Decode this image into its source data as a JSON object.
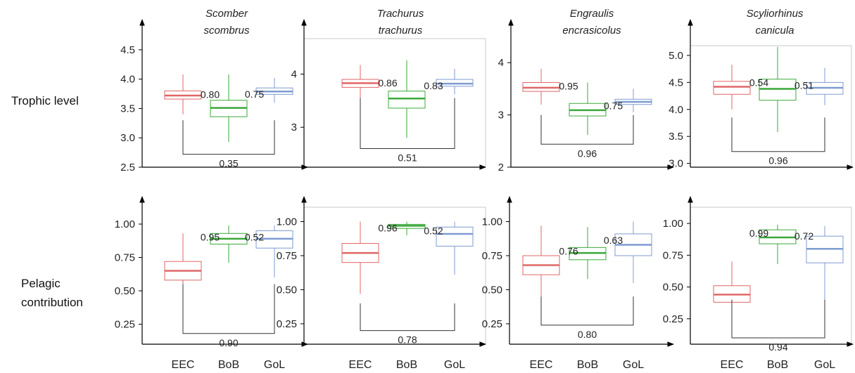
{
  "row_labels": {
    "trophic": "Trophic level",
    "pelagic_line1": "Pelagic",
    "pelagic_line2": "contribution"
  },
  "colors": {
    "EEC": "#e06666",
    "BoB": "#3aa83a",
    "GoL": "#7f9bd0",
    "axis": "#000000",
    "text": "#222222"
  },
  "chart_data": [
    {
      "type": "box",
      "id": "tl-scomber",
      "row": "trophic",
      "title": [
        "Scomber",
        "scombrus"
      ],
      "categories": [
        "EEC",
        "BoB",
        "GoL"
      ],
      "ticks": [
        2.5,
        3.0,
        3.5,
        4.0,
        4.5
      ],
      "tick_labels": [
        "2.5",
        "3.0",
        "3.5",
        "4.0",
        "4.5"
      ],
      "ylim": [
        2.5,
        4.75
      ],
      "boxes": [
        {
          "cat": "EEC",
          "min": 3.4,
          "q1": 3.66,
          "median": 3.72,
          "q3": 3.8,
          "max": 4.08
        },
        {
          "cat": "BoB",
          "min": 2.93,
          "q1": 3.36,
          "median": 3.51,
          "q3": 3.64,
          "max": 4.08
        },
        {
          "cat": "GoL",
          "min": 3.6,
          "q1": 3.74,
          "median": 3.79,
          "q3": 3.85,
          "max": 4.02
        }
      ],
      "pair_labels": [
        "0.80",
        "0.75"
      ],
      "bracket_label": "0.35",
      "bracket_y": 3.3,
      "bracket_bottom": 2.72
    },
    {
      "type": "box",
      "id": "tl-trachurus",
      "row": "trophic",
      "title": [
        "Trachurus",
        "trachurus"
      ],
      "categories": [
        "EEC",
        "BoB",
        "GoL"
      ],
      "ticks": [
        3,
        4
      ],
      "tick_labels": [
        "3",
        "4"
      ],
      "ylim": [
        2.25,
        4.6
      ],
      "boxes": [
        {
          "cat": "EEC",
          "min": 3.55,
          "q1": 3.75,
          "median": 3.83,
          "q3": 3.9,
          "max": 4.17
        },
        {
          "cat": "BoB",
          "min": 2.8,
          "q1": 3.36,
          "median": 3.54,
          "q3": 3.68,
          "max": 4.26
        },
        {
          "cat": "GoL",
          "min": 3.62,
          "q1": 3.77,
          "median": 3.82,
          "q3": 3.9,
          "max": 4.1
        }
      ],
      "pair_labels": [
        "0.86",
        "0.83"
      ],
      "bracket_label": "0.51",
      "bracket_y": 3.55,
      "bracket_bottom": 2.6
    },
    {
      "type": "box",
      "id": "tl-engraulis",
      "row": "trophic",
      "title": [
        "Engraulis",
        "encrasicolus"
      ],
      "categories": [
        "EEC",
        "BoB",
        "GoL"
      ],
      "ticks": [
        2,
        3,
        4
      ],
      "tick_labels": [
        "2",
        "3",
        "4"
      ],
      "ylim": [
        2.0,
        4.5
      ],
      "boxes": [
        {
          "cat": "EEC",
          "min": 3.2,
          "q1": 3.45,
          "median": 3.52,
          "q3": 3.62,
          "max": 3.88
        },
        {
          "cat": "BoB",
          "min": 2.62,
          "q1": 2.98,
          "median": 3.09,
          "q3": 3.22,
          "max": 3.62
        },
        {
          "cat": "GoL",
          "min": 3.05,
          "q1": 3.2,
          "median": 3.25,
          "q3": 3.3,
          "max": 3.5
        }
      ],
      "pair_labels": [
        "0.95",
        "0.75"
      ],
      "bracket_label": "0.96",
      "bracket_y": 3.0,
      "bracket_bottom": 2.44
    },
    {
      "type": "box",
      "id": "tl-scyliorhinus",
      "row": "trophic",
      "title": [
        "Scyliorhinus",
        "canicula"
      ],
      "categories": [
        "EEC",
        "BoB",
        "GoL"
      ],
      "ticks": [
        3.0,
        3.5,
        4.0,
        4.5,
        5.0
      ],
      "tick_labels": [
        "3.0",
        "3.5",
        "4.0",
        "4.5",
        "5.0"
      ],
      "ylim": [
        2.93,
        5.35
      ],
      "boxes": [
        {
          "cat": "EEC",
          "min": 4.0,
          "q1": 4.28,
          "median": 4.42,
          "q3": 4.52,
          "max": 4.83
        },
        {
          "cat": "BoB",
          "min": 3.58,
          "q1": 4.17,
          "median": 4.38,
          "q3": 4.56,
          "max": 5.16
        },
        {
          "cat": "GoL",
          "min": 4.08,
          "q1": 4.28,
          "median": 4.4,
          "q3": 4.5,
          "max": 4.77
        }
      ],
      "pair_labels": [
        "0.54",
        "0.51"
      ],
      "bracket_label": "0.96",
      "bracket_y": 3.85,
      "bracket_bottom": 3.22
    },
    {
      "type": "box",
      "id": "pc-scomber",
      "row": "pelagic",
      "title": [],
      "categories": [
        "EEC",
        "BoB",
        "GoL"
      ],
      "ticks": [
        0.25,
        0.5,
        0.75,
        1.0
      ],
      "tick_labels": [
        "0.25",
        "0.50",
        "0.75",
        "1.00"
      ],
      "ylim": [
        0.1,
        1.1
      ],
      "boxes": [
        {
          "cat": "EEC",
          "min": 0.36,
          "q1": 0.58,
          "median": 0.65,
          "q3": 0.72,
          "max": 0.93
        },
        {
          "cat": "BoB",
          "min": 0.71,
          "q1": 0.85,
          "median": 0.89,
          "q3": 0.93,
          "max": 0.99
        },
        {
          "cat": "GoL",
          "min": 0.6,
          "q1": 0.82,
          "median": 0.89,
          "q3": 0.95,
          "max": 0.99
        }
      ],
      "pair_labels": [
        "0.95",
        "0.52"
      ],
      "bracket_label": "0.90",
      "bracket_y": 0.55,
      "bracket_bottom": 0.18
    },
    {
      "type": "box",
      "id": "pc-trachurus",
      "row": "pelagic",
      "title": [],
      "categories": [
        "EEC",
        "BoB",
        "GoL"
      ],
      "ticks": [
        0.25,
        0.5,
        0.75,
        1.0
      ],
      "tick_labels": [
        "0.25",
        "0.50",
        "0.75",
        "1.00"
      ],
      "ylim": [
        0.1,
        1.08
      ],
      "boxes": [
        {
          "cat": "EEC",
          "min": 0.47,
          "q1": 0.7,
          "median": 0.77,
          "q3": 0.84,
          "max": 1.0
        },
        {
          "cat": "BoB",
          "min": 0.9,
          "q1": 0.95,
          "median": 0.97,
          "q3": 0.98,
          "max": 1.0
        },
        {
          "cat": "GoL",
          "min": 0.61,
          "q1": 0.82,
          "median": 0.91,
          "q3": 0.96,
          "max": 1.0
        }
      ],
      "pair_labels": [
        "0.96",
        "0.52"
      ],
      "bracket_label": "0.78",
      "bracket_y": 0.4,
      "bracket_bottom": 0.2
    },
    {
      "type": "box",
      "id": "pc-engraulis",
      "row": "pelagic",
      "title": [],
      "categories": [
        "EEC",
        "BoB",
        "GoL"
      ],
      "ticks": [
        0.25,
        0.5,
        0.75,
        1.0
      ],
      "tick_labels": [
        "0.25",
        "0.50",
        "0.75",
        "1.00"
      ],
      "ylim": [
        0.1,
        1.08
      ],
      "boxes": [
        {
          "cat": "EEC",
          "min": 0.41,
          "q1": 0.61,
          "median": 0.68,
          "q3": 0.75,
          "max": 0.97
        },
        {
          "cat": "BoB",
          "min": 0.58,
          "q1": 0.72,
          "median": 0.77,
          "q3": 0.81,
          "max": 0.96
        },
        {
          "cat": "GoL",
          "min": 0.55,
          "q1": 0.75,
          "median": 0.83,
          "q3": 0.91,
          "max": 1.0
        }
      ],
      "pair_labels": [
        "0.76",
        "0.63"
      ],
      "bracket_label": "0.80",
      "bracket_y": 0.45,
      "bracket_bottom": 0.24
    },
    {
      "type": "box",
      "id": "pc-scyliorhinus",
      "row": "pelagic",
      "title": [],
      "categories": [
        "EEC",
        "BoB",
        "GoL"
      ],
      "ticks": [
        0.25,
        0.5,
        0.75,
        1.0
      ],
      "tick_labels": [
        "0.25",
        "0.50",
        "0.75",
        "1.00"
      ],
      "ylim": [
        0.05,
        1.1
      ],
      "boxes": [
        {
          "cat": "EEC",
          "min": 0.19,
          "q1": 0.38,
          "median": 0.44,
          "q3": 0.51,
          "max": 0.7
        },
        {
          "cat": "BoB",
          "min": 0.68,
          "q1": 0.84,
          "median": 0.89,
          "q3": 0.95,
          "max": 0.99
        },
        {
          "cat": "GoL",
          "min": 0.4,
          "q1": 0.69,
          "median": 0.8,
          "q3": 0.9,
          "max": 0.98
        }
      ],
      "pair_labels": [
        "0.99",
        "0.72"
      ],
      "bracket_label": "0.94",
      "bracket_y": 0.4,
      "bracket_bottom": 0.1
    }
  ],
  "x_tick_labels": [
    "EEC",
    "BoB",
    "GoL"
  ]
}
